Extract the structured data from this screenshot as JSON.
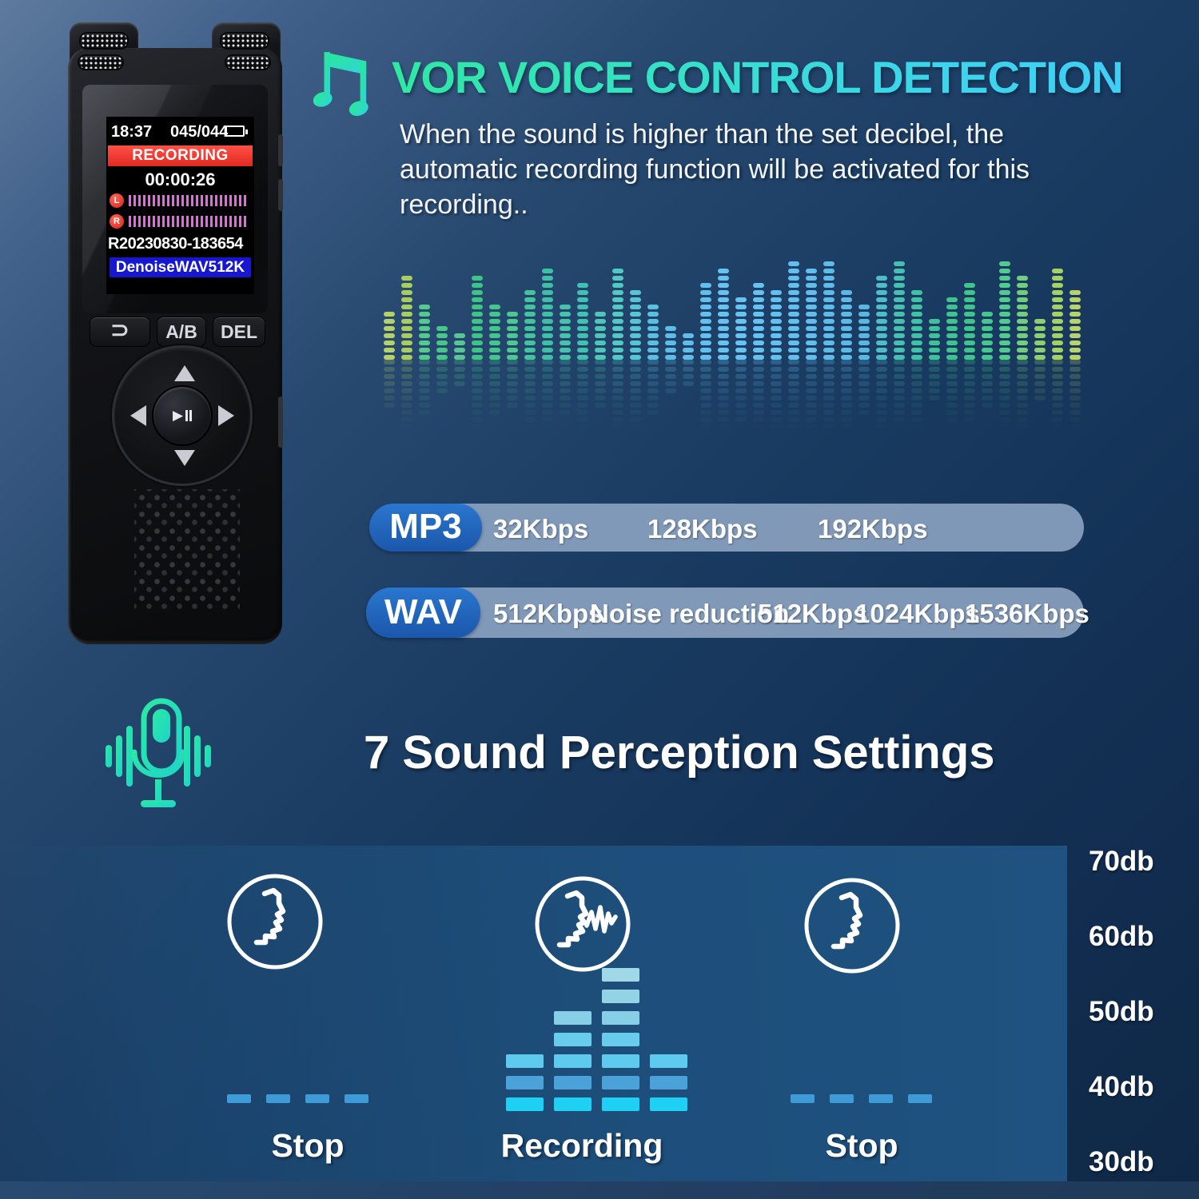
{
  "colors": {
    "accent_green": "#2de9a0",
    "accent_cyan": "#41cdf6",
    "pill_blue": "#1e63bd",
    "bar_slate": "#8fa5c4",
    "panel_blue": "#1d4e7a",
    "dash_blue": "#3f9bd8",
    "screen_red": "#ee3a2f",
    "screen_codec_blue": "#1717d0",
    "meter_magenta": "#d873d6"
  },
  "device": {
    "screen": {
      "time": "18:37",
      "counter": "045/044",
      "status": "RECORDING",
      "elapsed": "00:00:26",
      "meter_left": "L",
      "meter_right": "R",
      "filename": "R20230830-183654",
      "codec": "DenoiseWAV512K"
    },
    "buttons": {
      "back": "⊃",
      "ab": "A/B",
      "del": "DEL",
      "play": "▶"
    }
  },
  "hero": {
    "title": "VOR VOICE CONTROL DETECTION",
    "description": "When the sound is higher than the set decibel, the automatic recording function will be activated for this recording.."
  },
  "equalizer": {
    "columns": [
      {
        "h": 7,
        "c": "#b6d169"
      },
      {
        "h": 12,
        "c": "#a9cd5f"
      },
      {
        "h": 8,
        "c": "#54ca8c"
      },
      {
        "h": 5,
        "c": "#49c78a"
      },
      {
        "h": 4,
        "c": "#58c795"
      },
      {
        "h": 12,
        "c": "#3ec487"
      },
      {
        "h": 8,
        "c": "#45c68d"
      },
      {
        "h": 7,
        "c": "#4dc891"
      },
      {
        "h": 10,
        "c": "#45c29e"
      },
      {
        "h": 13,
        "c": "#3fc0a6"
      },
      {
        "h": 8,
        "c": "#47c3ab"
      },
      {
        "h": 11,
        "c": "#42c1b0"
      },
      {
        "h": 7,
        "c": "#4fc7b8"
      },
      {
        "h": 13,
        "c": "#52c9c2"
      },
      {
        "h": 10,
        "c": "#58c5d4"
      },
      {
        "h": 8,
        "c": "#5bc0e0"
      },
      {
        "h": 5,
        "c": "#5dbde6"
      },
      {
        "h": 4,
        "c": "#60beea"
      },
      {
        "h": 11,
        "c": "#62c0ee"
      },
      {
        "h": 13,
        "c": "#65c2f1"
      },
      {
        "h": 9,
        "c": "#67c3f2"
      },
      {
        "h": 11,
        "c": "#66c2f1"
      },
      {
        "h": 10,
        "c": "#64c0ef"
      },
      {
        "h": 14,
        "c": "#63bfed"
      },
      {
        "h": 13,
        "c": "#61bdeb"
      },
      {
        "h": 14,
        "c": "#5fbce9"
      },
      {
        "h": 10,
        "c": "#5dbae6"
      },
      {
        "h": 8,
        "c": "#58b8e0"
      },
      {
        "h": 12,
        "c": "#4fbcc9"
      },
      {
        "h": 14,
        "c": "#47c0b2"
      },
      {
        "h": 10,
        "c": "#42c2a4"
      },
      {
        "h": 6,
        "c": "#3fc29a"
      },
      {
        "h": 9,
        "c": "#41c391"
      },
      {
        "h": 11,
        "c": "#3fc48b"
      },
      {
        "h": 7,
        "c": "#46c78e"
      },
      {
        "h": 14,
        "c": "#52ca90"
      },
      {
        "h": 12,
        "c": "#73cd7e"
      },
      {
        "h": 6,
        "c": "#8ed06f"
      },
      {
        "h": 13,
        "c": "#a3d164"
      },
      {
        "h": 10,
        "c": "#b8d36b"
      }
    ]
  },
  "formats": {
    "mp3": {
      "label": "MP3",
      "bitrates": [
        "32Kbps",
        "128Kbps",
        "192Kbps"
      ]
    },
    "wav": {
      "label": "WAV",
      "bitrates": [
        "512Kbps",
        "Noise reduction",
        "512Kbps",
        "1024Kbps",
        "1536Kbps"
      ]
    }
  },
  "perception": {
    "heading": "7 Sound Perception Settings",
    "scenes": [
      {
        "label": "Stop",
        "type": "quiet"
      },
      {
        "label": "Recording",
        "type": "speaking"
      },
      {
        "label": "Stop",
        "type": "quiet"
      }
    ],
    "recording_levels": [
      3,
      5,
      7,
      3
    ],
    "bar_row_colors": [
      "#1fd0f5",
      "#4aa2d9",
      "#5ecbee",
      "#68cdec",
      "#86cfe6",
      "#93d3e6",
      "#a1d8e8"
    ],
    "stop_dash_count": 4,
    "db_scale": [
      "70db",
      "60db",
      "50db",
      "40db",
      "30db"
    ]
  }
}
